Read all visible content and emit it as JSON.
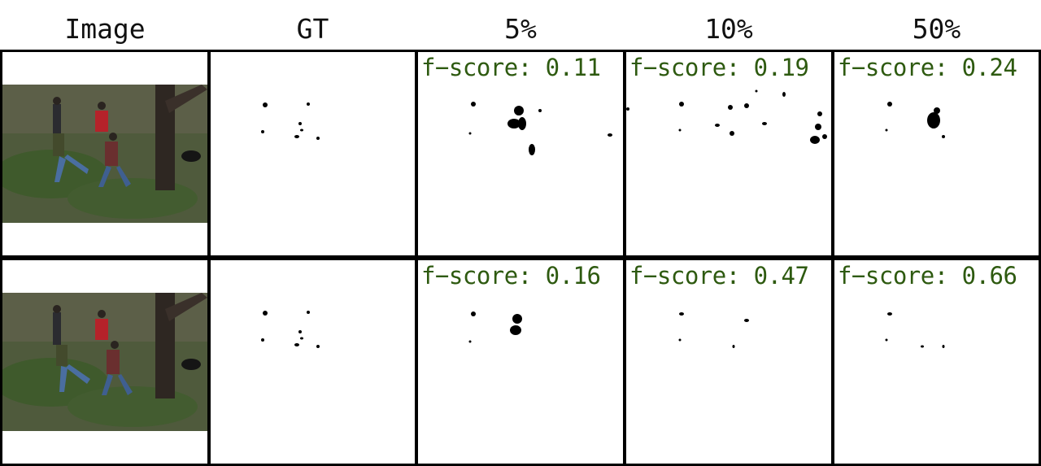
{
  "headers": {
    "image": "Image",
    "gt": "GT",
    "p5": "5%",
    "p10": "10%",
    "p50": "50%"
  },
  "rows": [
    {
      "scores": {
        "p5": "f−score: 0.11",
        "p10": "f−score: 0.19",
        "p50": "f−score: 0.24"
      }
    },
    {
      "scores": {
        "p5": "f−score: 0.16",
        "p10": "f−score: 0.47",
        "p50": "f−score: 0.66"
      }
    }
  ],
  "colors": {
    "score_text": "#2e5a10",
    "grid_lines": "#000000"
  }
}
